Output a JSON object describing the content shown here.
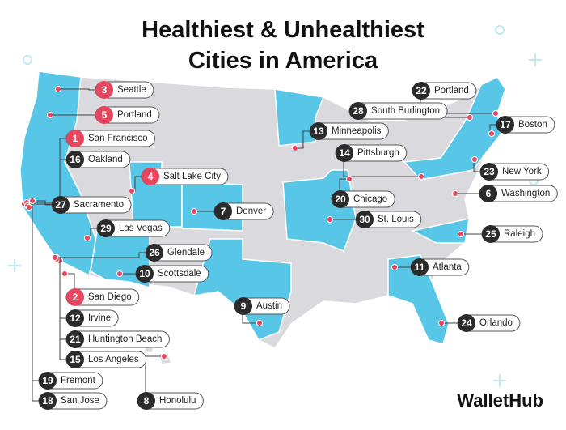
{
  "title": [
    "Healthiest & Unhealthiest",
    "Cities in America"
  ],
  "brand": "WalletHub",
  "cities": [
    {
      "rank": 3,
      "name": "Seattle",
      "color": "#e8455f"
    },
    {
      "rank": 5,
      "name": "Portland",
      "color": "#e8455f"
    },
    {
      "rank": 1,
      "name": "San Francisco",
      "color": "#e8455f"
    },
    {
      "rank": 16,
      "name": "Oakland",
      "color": "#2b2b2b"
    },
    {
      "rank": 4,
      "name": "Salt Lake City",
      "color": "#e8455f"
    },
    {
      "rank": 27,
      "name": "Sacramento",
      "color": "#2b2b2b"
    },
    {
      "rank": 29,
      "name": "Las Vegas",
      "color": "#2b2b2b"
    },
    {
      "rank": 7,
      "name": "Denver",
      "color": "#2b2b2b"
    },
    {
      "rank": 26,
      "name": "Glendale",
      "color": "#2b2b2b"
    },
    {
      "rank": 10,
      "name": "Scottsdale",
      "color": "#2b2b2b"
    },
    {
      "rank": 2,
      "name": "San Diego",
      "color": "#e8455f"
    },
    {
      "rank": 12,
      "name": "Irvine",
      "color": "#2b2b2b"
    },
    {
      "rank": 21,
      "name": "Huntington Beach",
      "color": "#2b2b2b"
    },
    {
      "rank": 15,
      "name": "Los Angeles",
      "color": "#2b2b2b"
    },
    {
      "rank": 19,
      "name": "Fremont",
      "color": "#2b2b2b"
    },
    {
      "rank": 18,
      "name": "San Jose",
      "color": "#2b2b2b"
    },
    {
      "rank": 8,
      "name": "Honolulu",
      "color": "#2b2b2b"
    },
    {
      "rank": 9,
      "name": "Austin",
      "color": "#2b2b2b"
    },
    {
      "rank": 13,
      "name": "Minneapolis",
      "color": "#2b2b2b"
    },
    {
      "rank": 14,
      "name": "Pittsburgh",
      "color": "#2b2b2b"
    },
    {
      "rank": 20,
      "name": "Chicago",
      "color": "#2b2b2b"
    },
    {
      "rank": 30,
      "name": "St. Louis",
      "color": "#2b2b2b"
    },
    {
      "rank": 28,
      "name": "South Burlington",
      "color": "#2b2b2b"
    },
    {
      "rank": 22,
      "name": "Portland",
      "color": "#2b2b2b"
    },
    {
      "rank": 17,
      "name": "Boston",
      "color": "#2b2b2b"
    },
    {
      "rank": 23,
      "name": "New York",
      "color": "#2b2b2b"
    },
    {
      "rank": 6,
      "name": "Washington",
      "color": "#2b2b2b"
    },
    {
      "rank": 25,
      "name": "Raleigh",
      "color": "#2b2b2b"
    },
    {
      "rank": 11,
      "name": "Atlanta",
      "color": "#2b2b2b"
    },
    {
      "rank": 24,
      "name": "Orlando",
      "color": "#2b2b2b"
    }
  ]
}
